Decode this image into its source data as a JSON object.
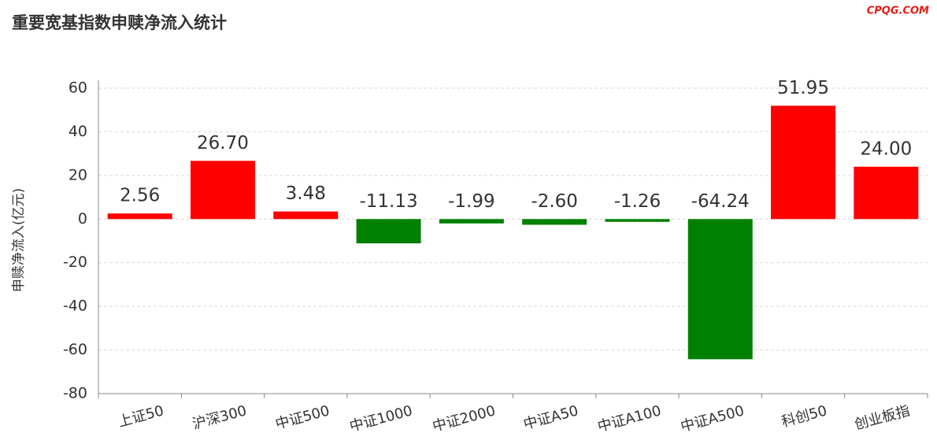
{
  "chart_data": {
    "type": "bar",
    "title": "重要宽基指数申赎净流入统计",
    "watermark": "CPQG.COM",
    "y_label": "申赎净流入(亿元)",
    "categories": [
      "上证50",
      "沪深300",
      "中证500",
      "中证1000",
      "中证2000",
      "中证A50",
      "中证A100",
      "中证A500",
      "科创50",
      "创业板指"
    ],
    "values": [
      2.56,
      26.7,
      3.48,
      -11.13,
      -1.99,
      -2.6,
      -1.26,
      -64.24,
      51.95,
      24.0
    ],
    "value_labels": [
      "2.56",
      "26.70",
      "3.48",
      "-11.13",
      "-1.99",
      "-2.60",
      "-1.26",
      "-64.24",
      "51.95",
      "24.00"
    ],
    "positive_color": "#ff0000",
    "negative_color": "#008000",
    "ylim": [
      -80,
      60
    ],
    "yticks": [
      -80,
      -60,
      -40,
      -20,
      0,
      20,
      40,
      60
    ],
    "grid": true
  }
}
